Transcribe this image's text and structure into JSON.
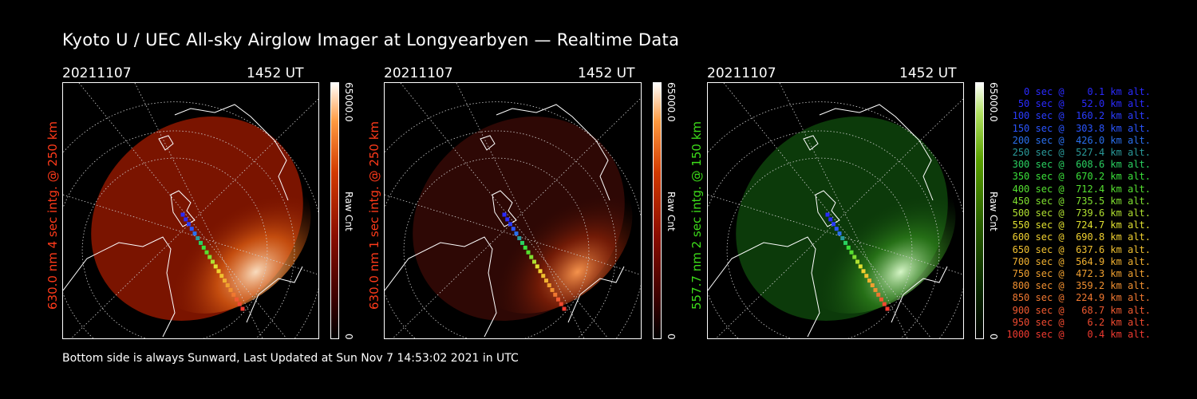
{
  "title": "Kyoto U / UEC All-sky Airglow Imager at Longyearbyen — Realtime Data",
  "footer": "Bottom side is always Sunward, Last Updated at Sun Nov  7 14:53:02 2021 in UTC",
  "panels": [
    {
      "date": "20211107",
      "time": "1452 UT",
      "ylabel": "630.0 nm 4 sec intg. @ 250 km",
      "ylabel_color": "#ff3a1a",
      "cb_max": "65000.0",
      "cb_min": "0",
      "cb_label": "Raw Cnt",
      "scheme": "red"
    },
    {
      "date": "20211107",
      "time": "1452 UT",
      "ylabel": "630.0 nm 1 sec intg. @ 250 km",
      "ylabel_color": "#ff3a1a",
      "cb_max": "65000.0",
      "cb_min": "0",
      "cb_label": "Raw Cnt",
      "scheme": "red"
    },
    {
      "date": "20211107",
      "time": "1452 UT",
      "ylabel": "557.7 nm 2 sec intg. @ 150 km",
      "ylabel_color": "#3ddc1a",
      "cb_max": "65000.0",
      "cb_min": "0",
      "cb_label": "Raw Cnt",
      "scheme": "green"
    }
  ],
  "legend": [
    {
      "text": "   0 sec @    0.1 km alt.",
      "color": "#2a2aff"
    },
    {
      "text": "  50 sec @   52.0 km alt.",
      "color": "#2a2aff"
    },
    {
      "text": " 100 sec @  160.2 km alt.",
      "color": "#2a3cff"
    },
    {
      "text": " 150 sec @  303.8 km alt.",
      "color": "#2a55ff"
    },
    {
      "text": " 200 sec @  426.0 km alt.",
      "color": "#2a70ee"
    },
    {
      "text": " 250 sec @  527.4 km alt.",
      "color": "#2a9a9a"
    },
    {
      "text": " 300 sec @  608.6 km alt.",
      "color": "#2ad060"
    },
    {
      "text": " 350 sec @  670.2 km alt.",
      "color": "#3ae03a"
    },
    {
      "text": " 400 sec @  712.4 km alt.",
      "color": "#55e030"
    },
    {
      "text": " 450 sec @  735.5 km alt.",
      "color": "#80e030"
    },
    {
      "text": " 500 sec @  739.6 km alt.",
      "color": "#b0e030"
    },
    {
      "text": " 550 sec @  724.7 km alt.",
      "color": "#e0e030"
    },
    {
      "text": " 600 sec @  690.8 km alt.",
      "color": "#f0d030"
    },
    {
      "text": " 650 sec @  637.6 km alt.",
      "color": "#f0c030"
    },
    {
      "text": " 700 sec @  564.9 km alt.",
      "color": "#f0b030"
    },
    {
      "text": " 750 sec @  472.3 km alt.",
      "color": "#f0a030"
    },
    {
      "text": " 800 sec @  359.2 km alt.",
      "color": "#f09030"
    },
    {
      "text": " 850 sec @  224.9 km alt.",
      "color": "#f07830"
    },
    {
      "text": " 900 sec @   68.7 km alt.",
      "color": "#f05a30"
    },
    {
      "text": " 950 sec @    6.2 km alt.",
      "color": "#f04a30"
    },
    {
      "text": "1000 sec @    0.4 km alt.",
      "color": "#f03a30"
    }
  ]
}
